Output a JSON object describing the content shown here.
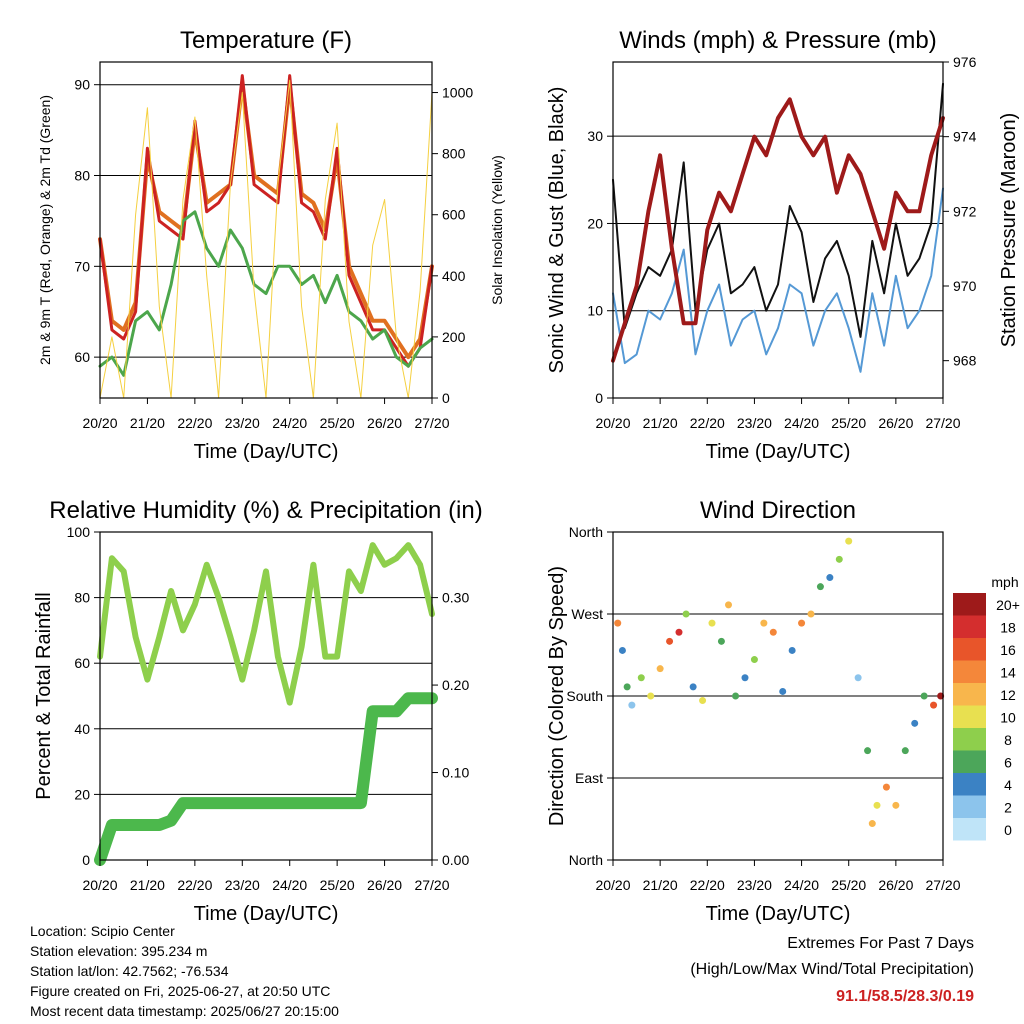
{
  "time_ticks": [
    "20/20",
    "21/20",
    "22/20",
    "23/20",
    "24/20",
    "25/20",
    "26/20",
    "27/20"
  ],
  "chart_data": [
    {
      "type": "line",
      "title": "Temperature (F)",
      "xlabel": "Time (Day/UTC)",
      "ylabel": "2m & 9m T (Red, Orange) & 2m Td (Green)",
      "y2label": "Solar Insolation (Yellow)",
      "x": [
        0,
        0.25,
        0.5,
        0.75,
        1.0,
        1.25,
        1.5,
        1.75,
        2.0,
        2.25,
        2.5,
        2.75,
        3.0,
        3.25,
        3.5,
        3.75,
        4.0,
        4.25,
        4.5,
        4.75,
        5.0,
        5.25,
        5.5,
        5.75,
        6.0,
        6.25,
        6.5,
        6.75,
        7.0
      ],
      "ylim": [
        55.5,
        92.5
      ],
      "yticks": [
        60,
        70,
        80,
        90
      ],
      "y2lim": [
        0,
        1100
      ],
      "y2ticks": [
        0,
        200,
        400,
        600,
        800,
        1000
      ],
      "series": [
        {
          "axis": "left",
          "color": "#e07020",
          "width": 4,
          "values": [
            73,
            64,
            63,
            66,
            82,
            76,
            75,
            74,
            85,
            77,
            78,
            79,
            90,
            80,
            79,
            78,
            90,
            78,
            77,
            74,
            82,
            70,
            67,
            64,
            64,
            62,
            60,
            62,
            70
          ]
        },
        {
          "axis": "left",
          "color": "#cc2222",
          "width": 3,
          "values": [
            73,
            63,
            62,
            65,
            83,
            75,
            74,
            73,
            86,
            76,
            77,
            79,
            91,
            79,
            78,
            77,
            91,
            77,
            76,
            73,
            83,
            69,
            66,
            63,
            63,
            61,
            59,
            61,
            70
          ]
        },
        {
          "axis": "left",
          "color": "#4ca64c",
          "width": 3,
          "values": [
            59,
            60,
            58,
            64,
            65,
            63,
            68,
            75,
            76,
            72,
            70,
            74,
            72,
            68,
            67,
            70,
            70,
            68,
            69,
            66,
            69,
            65,
            64,
            62,
            63,
            60,
            59,
            61,
            62
          ]
        },
        {
          "axis": "right",
          "color": "#f5d040",
          "width": 1,
          "values": [
            0,
            200,
            0,
            600,
            950,
            300,
            0,
            650,
            920,
            400,
            0,
            700,
            1000,
            350,
            0,
            700,
            1040,
            300,
            0,
            650,
            900,
            250,
            0,
            500,
            650,
            200,
            0,
            350,
            1000
          ]
        }
      ]
    },
    {
      "type": "line",
      "title": "Winds (mph) & Pressure (mb)",
      "xlabel": "Time (Day/UTC)",
      "ylabel": "Sonic Wind & Gust (Blue, Black)",
      "y2label": "Station Pressure (Maroon)",
      "x": [
        0,
        0.25,
        0.5,
        0.75,
        1.0,
        1.25,
        1.5,
        1.75,
        2.0,
        2.25,
        2.5,
        2.75,
        3.0,
        3.25,
        3.5,
        3.75,
        4.0,
        4.25,
        4.5,
        4.75,
        5.0,
        5.25,
        5.5,
        5.75,
        6.0,
        6.25,
        6.5,
        6.75,
        7.0
      ],
      "ylim": [
        0,
        38.5
      ],
      "yticks": [
        0,
        10,
        20,
        30
      ],
      "y2lim": [
        967,
        976
      ],
      "y2ticks": [
        968,
        970,
        972,
        974,
        976
      ],
      "series": [
        {
          "axis": "left",
          "color": "#5599d5",
          "width": 2,
          "values": [
            12,
            4,
            5,
            10,
            9,
            12,
            17,
            5,
            10,
            13,
            6,
            9,
            10,
            5,
            8,
            13,
            12,
            6,
            10,
            12,
            8,
            3,
            12,
            6,
            14,
            8,
            10,
            14,
            24
          ]
        },
        {
          "axis": "left",
          "color": "#111111",
          "width": 2,
          "values": [
            25,
            8,
            12,
            15,
            14,
            17,
            27,
            10,
            17,
            20,
            12,
            13,
            15,
            10,
            13,
            22,
            19,
            11,
            16,
            18,
            14,
            7,
            18,
            12,
            20,
            14,
            16,
            20,
            36
          ]
        },
        {
          "axis": "right",
          "color": "#9e1a1a",
          "width": 4,
          "values": [
            968,
            969,
            970,
            972,
            973.5,
            971,
            969,
            969,
            971.5,
            972.5,
            972,
            973,
            974,
            973.5,
            974.5,
            975,
            974,
            973.5,
            974,
            972.5,
            973.5,
            973,
            972,
            971,
            972.5,
            972,
            972,
            973.5,
            974.5
          ]
        }
      ]
    },
    {
      "type": "line",
      "title": "Relative Humidity (%) & Precipitation (in)",
      "xlabel": "Time (Day/UTC)",
      "ylabel": "Percent & Total Rainfall",
      "x": [
        0,
        0.25,
        0.5,
        0.75,
        1.0,
        1.25,
        1.5,
        1.75,
        2.0,
        2.25,
        2.5,
        2.75,
        3.0,
        3.25,
        3.5,
        3.75,
        4.0,
        4.25,
        4.5,
        4.75,
        5.0,
        5.25,
        5.5,
        5.75,
        6.0,
        6.25,
        6.5,
        6.75,
        7.0
      ],
      "ylim": [
        0,
        100
      ],
      "yticks": [
        0,
        20,
        40,
        60,
        80,
        100
      ],
      "y2lim": [
        0,
        0.375
      ],
      "y2ticks": [
        0.0,
        0.1,
        0.2,
        0.3
      ],
      "y2ticklabels": [
        "0.00",
        "0.10",
        "0.20",
        "0.30"
      ],
      "series": [
        {
          "axis": "left",
          "color": "#8ecf4c",
          "width": 6,
          "values": [
            62,
            92,
            88,
            68,
            55,
            68,
            82,
            70,
            78,
            90,
            80,
            68,
            55,
            70,
            88,
            62,
            48,
            65,
            90,
            62,
            62,
            88,
            82,
            96,
            90,
            92,
            96,
            90,
            75
          ]
        },
        {
          "axis": "right",
          "color": "#4cb84c",
          "width": 12,
          "values": [
            0,
            0.04,
            0.04,
            0.04,
            0.04,
            0.04,
            0.045,
            0.065,
            0.065,
            0.065,
            0.065,
            0.065,
            0.065,
            0.065,
            0.065,
            0.065,
            0.065,
            0.065,
            0.065,
            0.065,
            0.065,
            0.065,
            0.065,
            0.17,
            0.17,
            0.17,
            0.185,
            0.185,
            0.185
          ]
        }
      ]
    },
    {
      "type": "scatter",
      "title": "Wind Direction",
      "xlabel": "Time (Day/UTC)",
      "ylabel": "Direction (Colored By Speed)",
      "ylim": [
        0,
        360
      ],
      "yticks": [
        0,
        90,
        180,
        270,
        360
      ],
      "yticklabels": [
        "North",
        "East",
        "South",
        "West",
        "North"
      ],
      "legend": {
        "title": "mph",
        "labels": [
          "20+",
          "18",
          "16",
          "14",
          "12",
          "10",
          "8",
          "6",
          "4",
          "2",
          "0"
        ],
        "colors": [
          "#9e1a1a",
          "#d42e2e",
          "#e8552a",
          "#f4873a",
          "#f8b64c",
          "#e8e050",
          "#8ecf4c",
          "#4ca65a",
          "#3b82c4",
          "#8cc4ec",
          "#bfe4f8"
        ]
      },
      "points": [
        [
          0.1,
          260,
          14
        ],
        [
          0.2,
          230,
          4
        ],
        [
          0.3,
          190,
          6
        ],
        [
          0.4,
          170,
          2
        ],
        [
          0.6,
          200,
          8
        ],
        [
          0.8,
          180,
          10
        ],
        [
          1.0,
          210,
          12
        ],
        [
          1.2,
          240,
          16
        ],
        [
          1.4,
          250,
          18
        ],
        [
          1.55,
          270,
          8
        ],
        [
          1.7,
          190,
          4
        ],
        [
          1.9,
          175,
          10
        ],
        [
          2.1,
          260,
          10
        ],
        [
          2.3,
          240,
          6
        ],
        [
          2.45,
          280,
          12
        ],
        [
          2.6,
          180,
          6
        ],
        [
          2.8,
          200,
          4
        ],
        [
          3.0,
          220,
          8
        ],
        [
          3.2,
          260,
          12
        ],
        [
          3.4,
          250,
          14
        ],
        [
          3.6,
          185,
          4
        ],
        [
          3.8,
          230,
          4
        ],
        [
          4.0,
          260,
          14
        ],
        [
          4.2,
          270,
          12
        ],
        [
          4.4,
          300,
          6
        ],
        [
          4.6,
          310,
          4
        ],
        [
          4.8,
          330,
          8
        ],
        [
          5.0,
          350,
          10
        ],
        [
          5.2,
          200,
          2
        ],
        [
          5.4,
          120,
          6
        ],
        [
          5.5,
          40,
          12
        ],
        [
          5.6,
          60,
          10
        ],
        [
          5.8,
          80,
          14
        ],
        [
          6.0,
          60,
          12
        ],
        [
          6.2,
          120,
          6
        ],
        [
          6.4,
          150,
          4
        ],
        [
          6.6,
          180,
          6
        ],
        [
          6.8,
          170,
          16
        ],
        [
          6.95,
          180,
          20
        ]
      ]
    }
  ],
  "footer": {
    "location": "Location: Scipio Center",
    "elevation": "Station elevation: 395.234 m",
    "latlon": "Station lat/lon: 42.7562; -76.534",
    "created": "Figure created on Fri, 2025-06-27, at 20:50 UTC",
    "recent": "Most recent data timestamp: 2025/06/27 20:15:00"
  },
  "extremes": {
    "title": "Extremes For Past 7 Days",
    "subtitle": "(High/Low/Max Wind/Total Precipitation)",
    "values": "91.1/58.5/28.3/0.19"
  }
}
